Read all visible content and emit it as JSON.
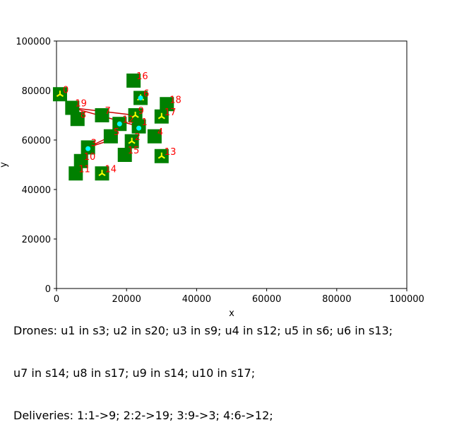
{
  "chart_data": {
    "type": "scatter",
    "xlabel": "x",
    "ylabel": "y",
    "xlim": [
      0,
      100000
    ],
    "ylim": [
      0,
      100000
    ],
    "x_ticks": [
      0,
      20000,
      40000,
      60000,
      80000,
      100000
    ],
    "y_ticks": [
      0,
      20000,
      40000,
      60000,
      80000,
      100000
    ],
    "tick_labels_x": [
      "0",
      "20000",
      "40000",
      "60000",
      "80000",
      "100000"
    ],
    "tick_labels_y": [
      "0",
      "20000",
      "40000",
      "60000",
      "80000",
      "100000"
    ],
    "stations": [
      {
        "label": "0",
        "x": 1000,
        "y": 78500
      },
      {
        "label": "1",
        "x": 23500,
        "y": 65500
      },
      {
        "label": "2",
        "x": 21500,
        "y": 59500
      },
      {
        "label": "3",
        "x": 9000,
        "y": 57000
      },
      {
        "label": "4",
        "x": 28000,
        "y": 61500
      },
      {
        "label": "5",
        "x": 15500,
        "y": 61500
      },
      {
        "label": "6",
        "x": 24000,
        "y": 77000
      },
      {
        "label": "7",
        "x": 13000,
        "y": 70000
      },
      {
        "label": "8",
        "x": 6000,
        "y": 68500
      },
      {
        "label": "9",
        "x": 22500,
        "y": 70000
      },
      {
        "label": "10",
        "x": 7000,
        "y": 51500
      },
      {
        "label": "11",
        "x": 5500,
        "y": 46500
      },
      {
        "label": "12",
        "x": 18000,
        "y": 66500
      },
      {
        "label": "13",
        "x": 30000,
        "y": 53500
      },
      {
        "label": "14",
        "x": 13000,
        "y": 46500
      },
      {
        "label": "15",
        "x": 19500,
        "y": 54000
      },
      {
        "label": "16",
        "x": 22000,
        "y": 84000
      },
      {
        "label": "17",
        "x": 30000,
        "y": 69500
      },
      {
        "label": "18",
        "x": 31500,
        "y": 74500
      },
      {
        "label": "19",
        "x": 4500,
        "y": 73000
      }
    ],
    "routes": [
      {
        "color": "#cc0000",
        "points": [
          [
            1000,
            78500
          ],
          [
            4500,
            73000
          ],
          [
            22500,
            70000
          ]
        ]
      },
      {
        "color": "#cc0000",
        "points": [
          [
            4500,
            73000
          ],
          [
            23500,
            65500
          ]
        ]
      },
      {
        "color": "#cc0000",
        "points": [
          [
            9000,
            57000
          ],
          [
            15500,
            61500
          ]
        ]
      },
      {
        "color": "#cc0000",
        "points": [
          [
            9000,
            57000
          ],
          [
            15500,
            60000
          ]
        ]
      },
      {
        "color": "#006400",
        "points": [
          [
            1000,
            78500
          ],
          [
            4500,
            73000
          ]
        ]
      }
    ],
    "drones_markers": [
      {
        "x": 1000,
        "y": 78500
      },
      {
        "x": 22500,
        "y": 70000
      },
      {
        "x": 21500,
        "y": 59500
      },
      {
        "x": 30000,
        "y": 69500
      },
      {
        "x": 30000,
        "y": 53500
      },
      {
        "x": 13000,
        "y": 46500
      },
      {
        "x": 24000,
        "y": 77000
      }
    ],
    "cyan_points": [
      {
        "x": 18000,
        "y": 66500
      },
      {
        "x": 23500,
        "y": 64800
      },
      {
        "x": 9000,
        "y": 56500
      },
      {
        "x": 24000,
        "y": 77000
      }
    ],
    "colors": {
      "station": "#008000",
      "station_label": "#ff0000",
      "drone": "#ffff00",
      "package": "#00ffff",
      "route": "#cc0000"
    }
  },
  "caption": {
    "line1": "Drones: u1 in s3; u2 in s20; u3 in s9; u4 in s12; u5 in s6; u6 in s13;",
    "line2": "u7 in s14; u8 in s17; u9 in s14; u10 in s17;",
    "line3": "Deliveries: 1:1->9; 2:2->19; 3:9->3; 4:6->12;"
  }
}
